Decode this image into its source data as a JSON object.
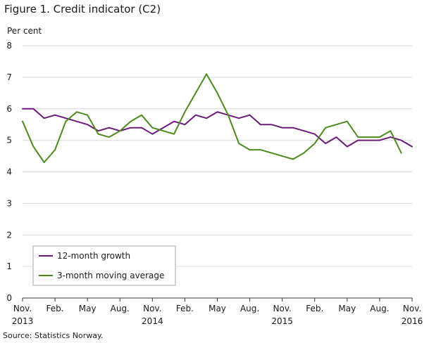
{
  "title": "Figure 1. Credit indicator (C2)",
  "source": "Source: Statistics Norway.",
  "chart_data": {
    "type": "line",
    "ylabel": "Per cent",
    "ylim": [
      0,
      8
    ],
    "yticks": [
      0,
      1,
      2,
      3,
      4,
      5,
      6,
      7,
      8
    ],
    "grid": "horizontal",
    "legend_position": "bottom-left",
    "x": [
      "2013-11",
      "2013-12",
      "2014-01",
      "2014-02",
      "2014-03",
      "2014-04",
      "2014-05",
      "2014-06",
      "2014-07",
      "2014-08",
      "2014-09",
      "2014-10",
      "2014-11",
      "2014-12",
      "2015-01",
      "2015-02",
      "2015-03",
      "2015-04",
      "2015-05",
      "2015-06",
      "2015-07",
      "2015-08",
      "2015-09",
      "2015-10",
      "2015-11",
      "2015-12",
      "2016-01",
      "2016-02",
      "2016-03",
      "2016-04",
      "2016-05",
      "2016-06",
      "2016-07",
      "2016-08",
      "2016-09",
      "2016-10",
      "2016-11"
    ],
    "xticks": [
      {
        "x": "2013-11",
        "label": "Nov.",
        "year": "2013"
      },
      {
        "x": "2014-02",
        "label": "Feb.",
        "year": ""
      },
      {
        "x": "2014-05",
        "label": "May",
        "year": ""
      },
      {
        "x": "2014-08",
        "label": "Aug.",
        "year": ""
      },
      {
        "x": "2014-11",
        "label": "Nov.",
        "year": "2014"
      },
      {
        "x": "2015-02",
        "label": "Feb.",
        "year": ""
      },
      {
        "x": "2015-05",
        "label": "May",
        "year": ""
      },
      {
        "x": "2015-08",
        "label": "Aug.",
        "year": ""
      },
      {
        "x": "2015-11",
        "label": "Nov.",
        "year": "2015"
      },
      {
        "x": "2016-02",
        "label": "Feb.",
        "year": ""
      },
      {
        "x": "2016-05",
        "label": "May",
        "year": ""
      },
      {
        "x": "2016-08",
        "label": "Aug.",
        "year": ""
      },
      {
        "x": "2016-11",
        "label": "Nov.",
        "year": "2016"
      }
    ],
    "series": [
      {
        "name": "12-month growth",
        "color": "#6a1a78",
        "values": [
          6.0,
          6.0,
          5.7,
          5.8,
          5.7,
          5.6,
          5.5,
          5.3,
          5.4,
          5.3,
          5.4,
          5.4,
          5.2,
          5.4,
          5.6,
          5.5,
          5.8,
          5.7,
          5.9,
          5.8,
          5.7,
          5.8,
          5.5,
          5.5,
          5.4,
          5.4,
          5.3,
          5.2,
          4.9,
          5.1,
          4.8,
          5.0,
          5.0,
          5.0,
          5.1,
          5.0,
          4.8
        ]
      },
      {
        "name": "3-month moving average",
        "color": "#4c8a1e",
        "values": [
          5.6,
          4.8,
          4.3,
          4.7,
          5.6,
          5.9,
          5.8,
          5.2,
          5.1,
          5.3,
          5.6,
          5.8,
          5.4,
          5.3,
          5.2,
          5.9,
          6.5,
          7.1,
          6.5,
          5.8,
          4.9,
          4.7,
          4.7,
          4.6,
          4.5,
          4.4,
          4.6,
          4.9,
          5.4,
          5.5,
          5.6,
          5.1,
          5.1,
          5.1,
          5.3,
          4.6,
          null
        ]
      }
    ]
  }
}
